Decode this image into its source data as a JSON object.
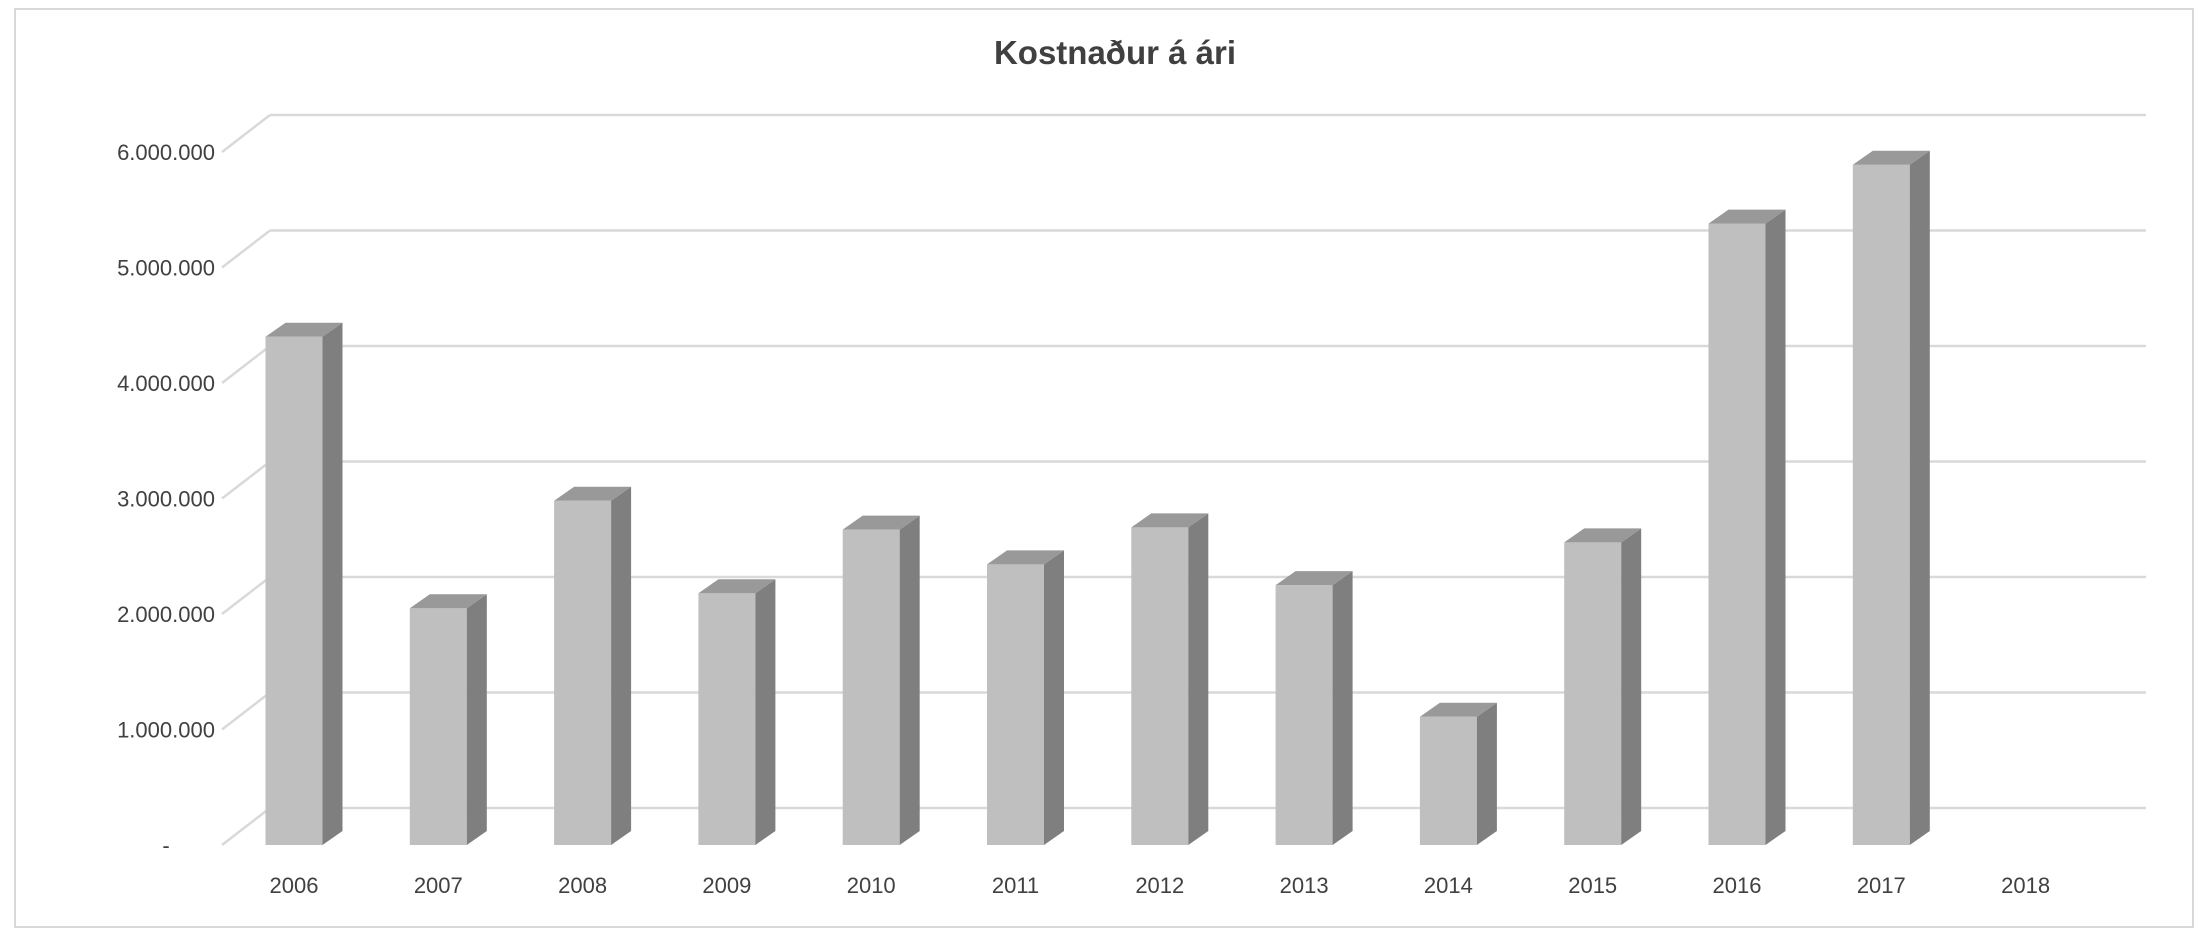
{
  "chart_data": {
    "type": "bar",
    "title": "Kostnaður á ári",
    "xlabel": "",
    "ylabel": "",
    "categories": [
      "2006",
      "2007",
      "2008",
      "2009",
      "2010",
      "2011",
      "2012",
      "2013",
      "2014",
      "2015",
      "2016",
      "2017",
      "2018"
    ],
    "values": [
      4400000,
      2050000,
      2980000,
      2180000,
      2730000,
      2430000,
      2750000,
      2250000,
      1110000,
      2620000,
      5380000,
      5890000,
      0
    ],
    "ylim": [
      0,
      6000000
    ],
    "yticks": [
      {
        "value": 0,
        "label": "-"
      },
      {
        "value": 1000000,
        "label": "1.000.000"
      },
      {
        "value": 2000000,
        "label": "2.000.000"
      },
      {
        "value": 3000000,
        "label": "3.000.000"
      },
      {
        "value": 4000000,
        "label": "4.000.000"
      },
      {
        "value": 5000000,
        "label": "5.000.000"
      },
      {
        "value": 6000000,
        "label": "6.000.000"
      }
    ],
    "grid": true,
    "legend": "none",
    "colors": {
      "front": "#bfbfbf",
      "side": "#7f7f7f",
      "top": "#999999",
      "grid": "#d9d9d9"
    }
  }
}
